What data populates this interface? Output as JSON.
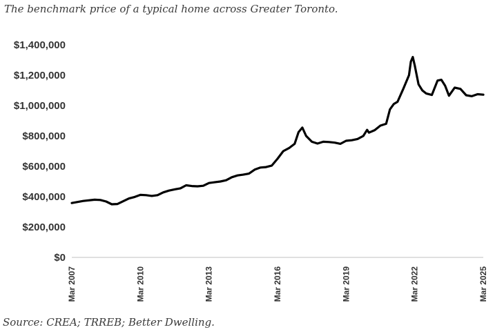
{
  "header": {
    "subtitle": "The benchmark price of a typical home across Greater Toronto."
  },
  "footer": {
    "source": "Source: CREA; TRREB; Better Dwelling."
  },
  "chart_data": {
    "type": "line",
    "title": "",
    "xlabel": "",
    "ylabel": "",
    "ylim": [
      0,
      1400000
    ],
    "y_ticks": [
      "$0",
      "$200,000",
      "$400,000",
      "$600,000",
      "$800,000",
      "$1,000,000",
      "$1,200,000",
      "$1,400,000"
    ],
    "x_ticks": [
      "Mar 2007",
      "Mar 2010",
      "Mar 2013",
      "Mar 2016",
      "Mar 2019",
      "Mar 2022",
      "Mar 2025"
    ],
    "grid": false,
    "colors": {
      "line": "#000000",
      "axis": "#bfbfbf",
      "text": "#333333"
    },
    "series": [
      {
        "x": [
          "2007-03",
          "2007-09",
          "2008-03",
          "2008-06",
          "2008-09",
          "2008-12",
          "2009-03",
          "2009-06",
          "2009-09",
          "2009-12",
          "2010-03",
          "2010-06",
          "2010-09",
          "2010-12",
          "2011-03",
          "2011-06",
          "2011-09",
          "2011-12",
          "2012-03",
          "2012-06",
          "2012-09",
          "2012-12",
          "2013-03",
          "2013-06",
          "2013-09",
          "2013-12",
          "2014-03",
          "2014-06",
          "2014-09",
          "2014-12",
          "2015-03",
          "2015-06",
          "2015-09",
          "2015-12",
          "2016-03",
          "2016-06",
          "2016-09",
          "2016-12",
          "2017-02",
          "2017-04",
          "2017-06",
          "2017-09",
          "2017-12",
          "2018-03",
          "2018-06",
          "2018-09",
          "2018-12",
          "2019-03",
          "2019-06",
          "2019-09",
          "2019-12",
          "2020-02",
          "2020-03",
          "2020-06",
          "2020-09",
          "2020-12",
          "2021-02",
          "2021-04",
          "2021-06",
          "2021-09",
          "2021-12",
          "2022-01",
          "2022-02",
          "2022-03",
          "2022-05",
          "2022-07",
          "2022-09",
          "2022-12",
          "2023-03",
          "2023-05",
          "2023-07",
          "2023-09",
          "2023-12",
          "2024-03",
          "2024-06",
          "2024-09",
          "2024-12",
          "2025-03"
        ],
        "values": [
          358000,
          372000,
          380000,
          378000,
          368000,
          350000,
          352000,
          370000,
          388000,
          398000,
          412000,
          410000,
          405000,
          410000,
          428000,
          440000,
          448000,
          455000,
          475000,
          470000,
          468000,
          472000,
          490000,
          495000,
          500000,
          508000,
          528000,
          540000,
          545000,
          552000,
          578000,
          592000,
          595000,
          605000,
          650000,
          700000,
          720000,
          748000,
          825000,
          855000,
          800000,
          762000,
          750000,
          762000,
          760000,
          756000,
          748000,
          768000,
          772000,
          780000,
          800000,
          840000,
          822000,
          838000,
          868000,
          880000,
          975000,
          1010000,
          1025000,
          1110000,
          1200000,
          1290000,
          1320000,
          1265000,
          1140000,
          1100000,
          1080000,
          1070000,
          1165000,
          1170000,
          1130000,
          1065000,
          1118000,
          1110000,
          1068000,
          1062000,
          1075000,
          1072000
        ]
      }
    ]
  }
}
